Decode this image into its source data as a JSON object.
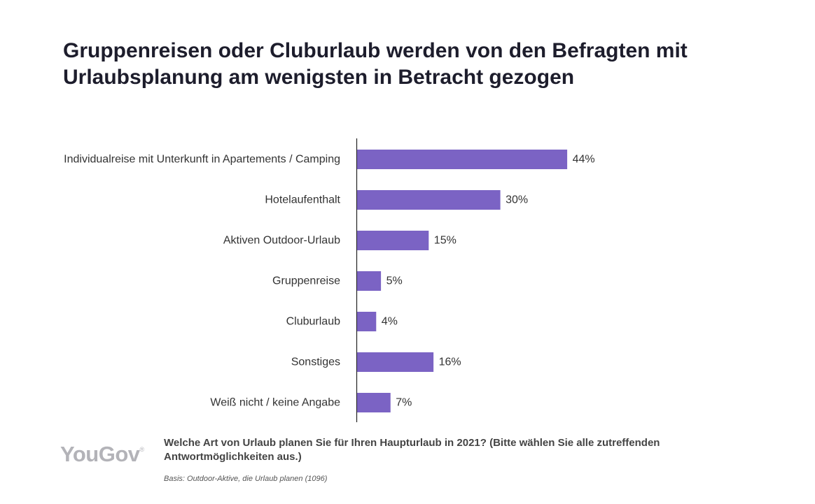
{
  "title_lines": [
    "Gruppenreisen oder Cluburlaub werden von den Befragten mit",
    "Urlaubsplanung am wenigsten in Betracht gezogen"
  ],
  "chart_data": {
    "type": "bar",
    "orientation": "horizontal",
    "categories": [
      "Individualreise mit Unterkunft in Apartements / Camping",
      "Hotelaufenthalt",
      "Aktiven Outdoor-Urlaub",
      "Gruppenreise",
      "Cluburlaub",
      "Sonstiges",
      "Weiß nicht / keine Angabe"
    ],
    "values": [
      44,
      30,
      15,
      5,
      4,
      16,
      7
    ],
    "value_labels": [
      "44%",
      "30%",
      "15%",
      "5%",
      "4%",
      "16%",
      "7%"
    ],
    "unit": "%",
    "xlim": [
      0,
      100
    ],
    "grid": false,
    "legend": "none",
    "bar_color": "#7b63c4"
  },
  "footer": {
    "logo_text": "YouGov",
    "logo_mark": "®",
    "question_lines": [
      "Welche Art von Urlaub planen Sie für Ihren Haupturlaub in 2021? (Bitte wählen Sie alle zutreffenden",
      "Antwortmöglichkeiten aus.)"
    ],
    "basis": "Basis: Outdoor-Aktive, die Urlaub planen (1096)"
  },
  "colors": {
    "bar": "#7b63c4",
    "title": "#1d1d2c",
    "logo": "#b3b3b8"
  }
}
